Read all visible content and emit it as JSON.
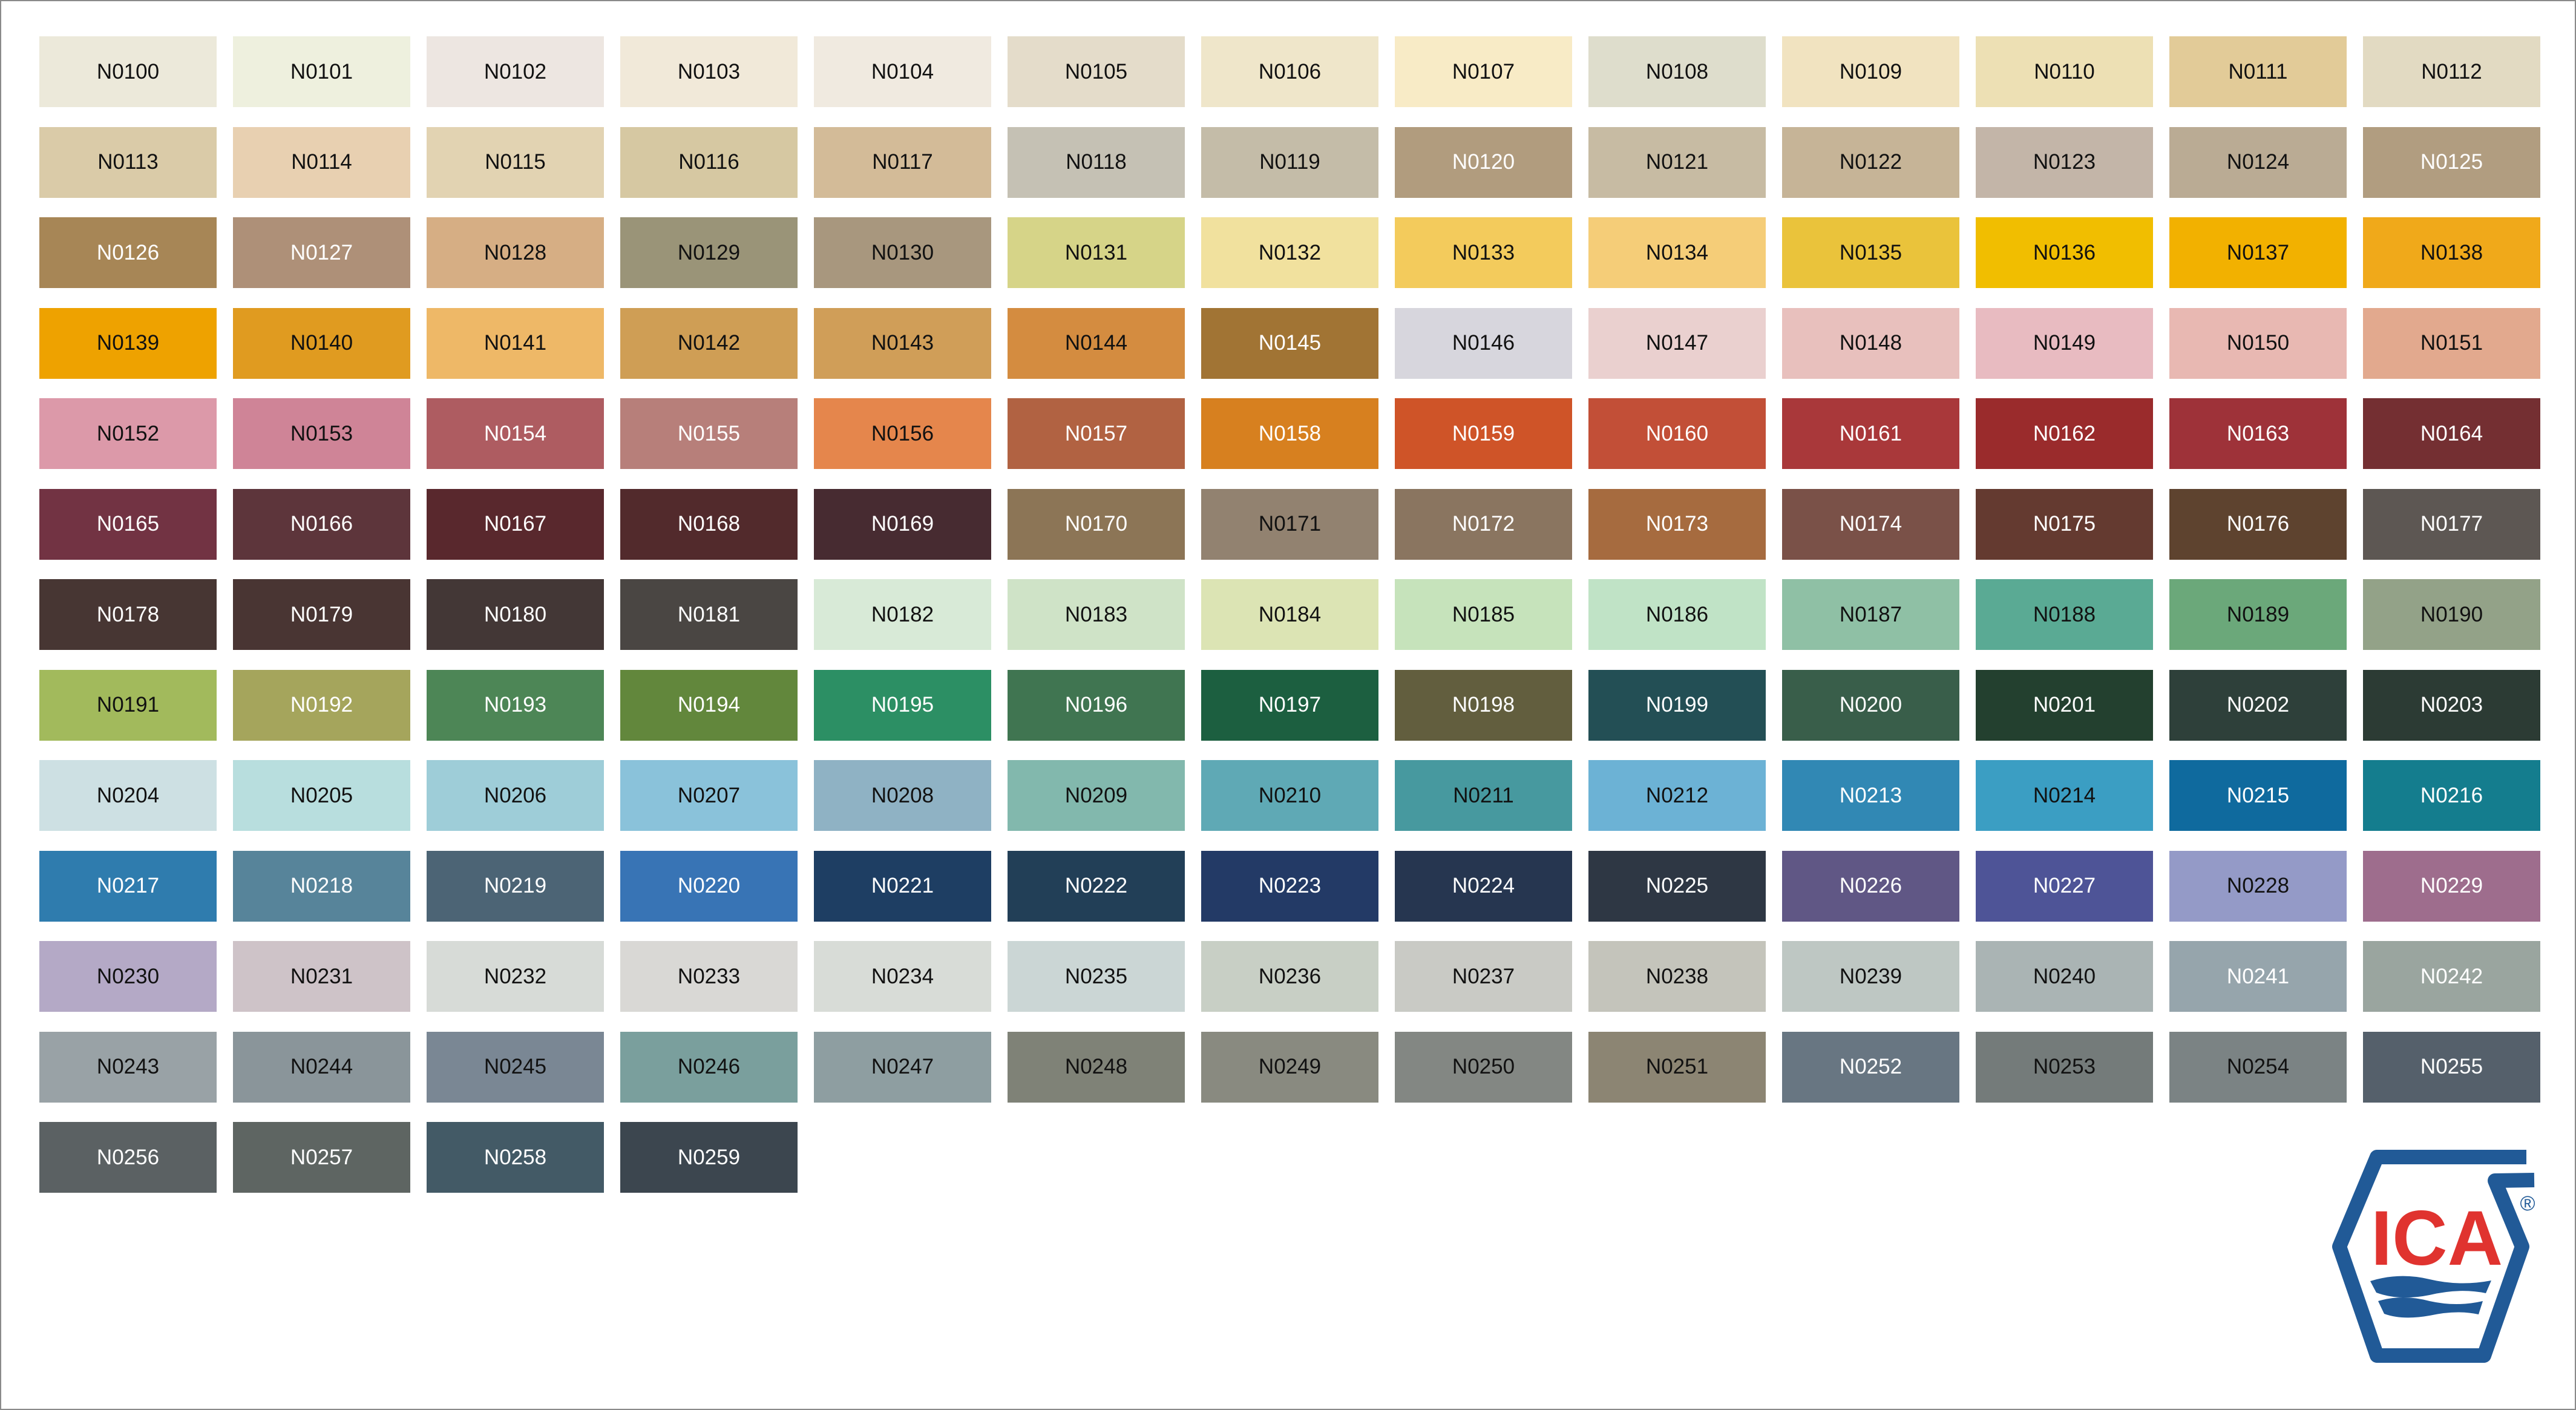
{
  "logo": {
    "text": "ICA",
    "registered": "®",
    "blue": "#215A97",
    "red": "#E0332F"
  },
  "swatches": [
    [
      "N0100",
      "#ECE9DA",
      0
    ],
    [
      "N0101",
      "#EEF0DE",
      0
    ],
    [
      "N0102",
      "#EDE6E1",
      0
    ],
    [
      "N0103",
      "#F1E9D9",
      0
    ],
    [
      "N0104",
      "#F0EAE0",
      0
    ],
    [
      "N0105",
      "#E4DCCA",
      0
    ],
    [
      "N0106",
      "#EFE6CA",
      0
    ],
    [
      "N0107",
      "#F8EBC6",
      0
    ],
    [
      "N0108",
      "#DEDDCC",
      0
    ],
    [
      "N0109",
      "#F1E3C0",
      0
    ],
    [
      "N0110",
      "#EDE0B4",
      0
    ],
    [
      "N0111",
      "#E2CB98",
      0
    ],
    [
      "N0112",
      "#E2DAC2",
      0
    ],
    [
      "N0113",
      "#DACBA8",
      0
    ],
    [
      "N0114",
      "#E8D0B1",
      0
    ],
    [
      "N0115",
      "#E2D3B2",
      0
    ],
    [
      "N0116",
      "#D6C8A2",
      0
    ],
    [
      "N0117",
      "#D3BB98",
      0
    ],
    [
      "N0118",
      "#C5C1B4",
      0
    ],
    [
      "N0119",
      "#C4BCA8",
      0
    ],
    [
      "N0120",
      "#B19C7E",
      1
    ],
    [
      "N0121",
      "#C7BBA3",
      0
    ],
    [
      "N0122",
      "#C6B497",
      0
    ],
    [
      "N0123",
      "#C3B5A8",
      0
    ],
    [
      "N0124",
      "#BAAB94",
      0
    ],
    [
      "N0125",
      "#B19D80",
      1
    ],
    [
      "N0126",
      "#A78656",
      1
    ],
    [
      "N0127",
      "#AE9078",
      1
    ],
    [
      "N0128",
      "#D6AE84",
      0
    ],
    [
      "N0129",
      "#9A9478",
      0
    ],
    [
      "N0130",
      "#A8977E",
      0
    ],
    [
      "N0131",
      "#D6D488",
      0
    ],
    [
      "N0132",
      "#F1E19E",
      0
    ],
    [
      "N0133",
      "#F3CB5C",
      0
    ],
    [
      "N0134",
      "#F5CD78",
      0
    ],
    [
      "N0135",
      "#EAC33B",
      0
    ],
    [
      "N0136",
      "#F1BE00",
      0
    ],
    [
      "N0137",
      "#F2B100",
      0
    ],
    [
      "N0138",
      "#F0A91A",
      0
    ],
    [
      "N0139",
      "#EEA200",
      0
    ],
    [
      "N0140",
      "#E09B20",
      0
    ],
    [
      "N0141",
      "#EEB867",
      0
    ],
    [
      "N0142",
      "#CF9E55",
      0
    ],
    [
      "N0143",
      "#D09E58",
      0
    ],
    [
      "N0144",
      "#D48C40",
      0
    ],
    [
      "N0145",
      "#A17434",
      1
    ],
    [
      "N0146",
      "#D7D6DD",
      0
    ],
    [
      "N0147",
      "#EAD0CF",
      0
    ],
    [
      "N0148",
      "#E8C0BD",
      0
    ],
    [
      "N0149",
      "#E8BBC1",
      0
    ],
    [
      "N0150",
      "#E8B8B2",
      0
    ],
    [
      "N0151",
      "#E2A98E",
      0
    ],
    [
      "N0152",
      "#DC99A9",
      0
    ],
    [
      "N0153",
      "#CF8497",
      0
    ],
    [
      "N0154",
      "#AE5C61",
      1
    ],
    [
      "N0155",
      "#B77F7A",
      1
    ],
    [
      "N0156",
      "#E5864C",
      0
    ],
    [
      "N0157",
      "#B16242",
      1
    ],
    [
      "N0158",
      "#D7801F",
      1
    ],
    [
      "N0159",
      "#CF5428",
      1
    ],
    [
      "N0160",
      "#C24F37",
      1
    ],
    [
      "N0161",
      "#A9383A",
      1
    ],
    [
      "N0162",
      "#9A2B2C",
      1
    ],
    [
      "N0163",
      "#9E3239",
      1
    ],
    [
      "N0164",
      "#742F32",
      1
    ],
    [
      "N0165",
      "#723343",
      1
    ],
    [
      "N0166",
      "#5D353B",
      1
    ],
    [
      "N0167",
      "#59282D",
      1
    ],
    [
      "N0168",
      "#522A2C",
      1
    ],
    [
      "N0169",
      "#472B31",
      1
    ],
    [
      "N0170",
      "#8C7556",
      1
    ],
    [
      "N0171",
      "#928270",
      0
    ],
    [
      "N0172",
      "#8A7560",
      1
    ],
    [
      "N0173",
      "#A66B3F",
      1
    ],
    [
      "N0174",
      "#7A5148",
      1
    ],
    [
      "N0175",
      "#643A30",
      1
    ],
    [
      "N0176",
      "#5E432F",
      1
    ],
    [
      "N0177",
      "#5D5753",
      1
    ],
    [
      "N0178",
      "#473633",
      1
    ],
    [
      "N0179",
      "#493533",
      1
    ],
    [
      "N0180",
      "#433736",
      1
    ],
    [
      "N0181",
      "#4A4643",
      1
    ],
    [
      "N0182",
      "#D8EAD7",
      0
    ],
    [
      "N0183",
      "#CFE3C7",
      0
    ],
    [
      "N0184",
      "#DCE4B4",
      0
    ],
    [
      "N0185",
      "#C6E3BB",
      0
    ],
    [
      "N0186",
      "#C0E3C6",
      0
    ],
    [
      "N0187",
      "#8FC0A5",
      0
    ],
    [
      "N0188",
      "#5AAA94",
      0
    ],
    [
      "N0189",
      "#6BA87A",
      0
    ],
    [
      "N0190",
      "#93A288",
      0
    ],
    [
      "N0191",
      "#A2BA5C",
      0
    ],
    [
      "N0192",
      "#A5A55C",
      1
    ],
    [
      "N0193",
      "#4D8656",
      1
    ],
    [
      "N0194",
      "#62873C",
      1
    ],
    [
      "N0195",
      "#2C8F64",
      1
    ],
    [
      "N0196",
      "#407551",
      1
    ],
    [
      "N0197",
      "#1C5F40",
      1
    ],
    [
      "N0198",
      "#625E3E",
      1
    ],
    [
      "N0199",
      "#234F55",
      1
    ],
    [
      "N0200",
      "#395E4A",
      1
    ],
    [
      "N0201",
      "#23402F",
      1
    ],
    [
      "N0202",
      "#2E403A",
      1
    ],
    [
      "N0203",
      "#2C3B34",
      1
    ],
    [
      "N0204",
      "#CDE0E3",
      0
    ],
    [
      "N0205",
      "#B8DEDE",
      0
    ],
    [
      "N0206",
      "#9ECDD8",
      0
    ],
    [
      "N0207",
      "#8AC2DA",
      0
    ],
    [
      "N0208",
      "#8FB2C4",
      0
    ],
    [
      "N0209",
      "#82B8AD",
      0
    ],
    [
      "N0210",
      "#5FA9B5",
      0
    ],
    [
      "N0211",
      "#47999F",
      0
    ],
    [
      "N0212",
      "#6CB2D5",
      0
    ],
    [
      "N0213",
      "#3188B4",
      1
    ],
    [
      "N0214",
      "#3B9EC3",
      0
    ],
    [
      "N0215",
      "#0F6A9E",
      1
    ],
    [
      "N0216",
      "#147D8E",
      1
    ],
    [
      "N0217",
      "#2F7CAE",
      1
    ],
    [
      "N0218",
      "#57849A",
      1
    ],
    [
      "N0219",
      "#4C6475",
      1
    ],
    [
      "N0220",
      "#3874B5",
      1
    ],
    [
      "N0221",
      "#1E3E63",
      1
    ],
    [
      "N0222",
      "#223F57",
      1
    ],
    [
      "N0223",
      "#233A66",
      1
    ],
    [
      "N0224",
      "#263650",
      1
    ],
    [
      "N0225",
      "#2E3744",
      1
    ],
    [
      "N0226",
      "#605785",
      1
    ],
    [
      "N0227",
      "#4E5497",
      1
    ],
    [
      "N0228",
      "#949AC7",
      0
    ],
    [
      "N0229",
      "#9E6D8D",
      1
    ],
    [
      "N0230",
      "#B4A9C6",
      0
    ],
    [
      "N0231",
      "#CEC3C8",
      0
    ],
    [
      "N0232",
      "#D7DBD7",
      0
    ],
    [
      "N0233",
      "#D9D8D5",
      0
    ],
    [
      "N0234",
      "#D8DCD7",
      0
    ],
    [
      "N0235",
      "#CBD6D5",
      0
    ],
    [
      "N0236",
      "#C8CFC5",
      0
    ],
    [
      "N0237",
      "#C9CAC5",
      0
    ],
    [
      "N0238",
      "#C4C4BB",
      0
    ],
    [
      "N0239",
      "#BEC7C3",
      0
    ],
    [
      "N0240",
      "#AAB4B4",
      0
    ],
    [
      "N0241",
      "#96A5AC",
      1
    ],
    [
      "N0242",
      "#9AA59F",
      1
    ],
    [
      "N0243",
      "#99A2A6",
      0
    ],
    [
      "N0244",
      "#8A959A",
      0
    ],
    [
      "N0245",
      "#7A8794",
      0
    ],
    [
      "N0246",
      "#7A9F9D",
      0
    ],
    [
      "N0247",
      "#8E9EA1",
      0
    ],
    [
      "N0248",
      "#7F8277",
      0
    ],
    [
      "N0249",
      "#898A80",
      0
    ],
    [
      "N0250",
      "#838783",
      0
    ],
    [
      "N0251",
      "#8C8573",
      0
    ],
    [
      "N0252",
      "#687682",
      1
    ],
    [
      "N0253",
      "#747B7A",
      0
    ],
    [
      "N0254",
      "#7B8384",
      0
    ],
    [
      "N0255",
      "#55606B",
      1
    ],
    [
      "N0256",
      "#5B6163",
      1
    ],
    [
      "N0257",
      "#5E6562",
      1
    ],
    [
      "N0258",
      "#435A66",
      1
    ],
    [
      "N0259",
      "#3C464F",
      1
    ]
  ]
}
